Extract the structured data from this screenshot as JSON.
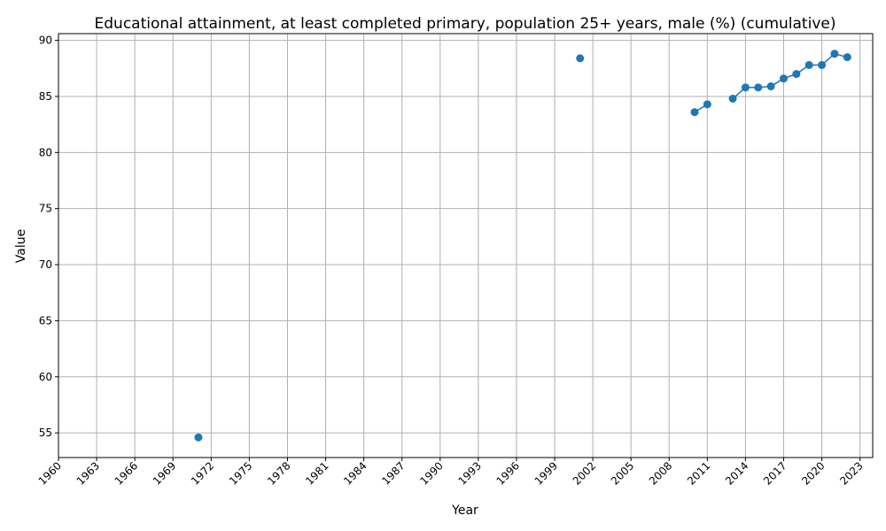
{
  "chart_data": {
    "type": "line",
    "title": "Educational attainment, at least completed primary, population 25+ years, male (%) (cumulative)",
    "xlabel": "Year",
    "ylabel": "Value",
    "xlim": [
      1960,
      2024
    ],
    "ylim": [
      52.8,
      90.6
    ],
    "x_ticks": [
      1960,
      1963,
      1966,
      1969,
      1972,
      1975,
      1978,
      1981,
      1984,
      1987,
      1990,
      1993,
      1996,
      1999,
      2002,
      2005,
      2008,
      2011,
      2014,
      2017,
      2020,
      2023
    ],
    "x_tick_labels": [
      "1960",
      "1963",
      "1966",
      "1969",
      "1972",
      "1975",
      "1978",
      "1981",
      "1984",
      "1987",
      "1990",
      "1993",
      "1996",
      "1999",
      "2002",
      "2005",
      "2008",
      "2011",
      "2014",
      "2017",
      "2020",
      "2023"
    ],
    "y_ticks": [
      55,
      60,
      65,
      70,
      75,
      80,
      85,
      90
    ],
    "y_tick_labels": [
      "55",
      "60",
      "65",
      "70",
      "75",
      "80",
      "85",
      "90"
    ],
    "grid": true,
    "series": [
      {
        "color": "#1f77b4",
        "points": [
          [
            1971,
            54.6
          ],
          [
            2001,
            88.4
          ],
          [
            2010,
            83.6
          ],
          [
            2011,
            84.3
          ],
          [
            2013,
            84.8
          ],
          [
            2014,
            85.8
          ],
          [
            2015,
            85.8
          ],
          [
            2016,
            85.9
          ],
          [
            2017,
            86.6
          ],
          [
            2018,
            87.0
          ],
          [
            2019,
            87.8
          ],
          [
            2020,
            87.8
          ],
          [
            2021,
            88.8
          ],
          [
            2022,
            88.5
          ]
        ]
      }
    ]
  }
}
